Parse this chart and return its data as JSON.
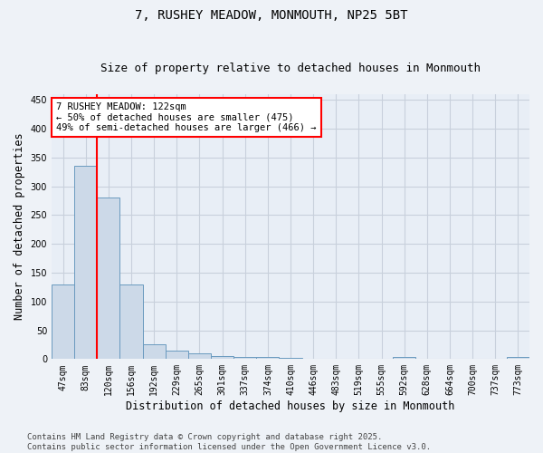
{
  "title": "7, RUSHEY MEADOW, MONMOUTH, NP25 5BT",
  "subtitle": "Size of property relative to detached houses in Monmouth",
  "xlabel": "Distribution of detached houses by size in Monmouth",
  "ylabel": "Number of detached properties",
  "categories": [
    "47sqm",
    "83sqm",
    "120sqm",
    "156sqm",
    "192sqm",
    "229sqm",
    "265sqm",
    "301sqm",
    "337sqm",
    "374sqm",
    "410sqm",
    "446sqm",
    "483sqm",
    "519sqm",
    "555sqm",
    "592sqm",
    "628sqm",
    "664sqm",
    "700sqm",
    "737sqm",
    "773sqm"
  ],
  "values": [
    130,
    335,
    280,
    130,
    25,
    15,
    10,
    5,
    4,
    3,
    2,
    1,
    1,
    1,
    1,
    3,
    1,
    1,
    1,
    1,
    3
  ],
  "bar_color": "#ccd9e8",
  "bar_edge_color": "#6a9abf",
  "vline_x": 1.5,
  "vline_color": "red",
  "annotation_text": "7 RUSHEY MEADOW: 122sqm\n← 50% of detached houses are smaller (475)\n49% of semi-detached houses are larger (466) →",
  "annotation_box_facecolor": "white",
  "annotation_box_edgecolor": "red",
  "ylim": [
    0,
    460
  ],
  "yticks": [
    0,
    50,
    100,
    150,
    200,
    250,
    300,
    350,
    400,
    450
  ],
  "footer_line1": "Contains HM Land Registry data © Crown copyright and database right 2025.",
  "footer_line2": "Contains public sector information licensed under the Open Government Licence v3.0.",
  "fig_facecolor": "#eef2f7",
  "plot_facecolor": "#e8eef6",
  "grid_color": "#c8d0dc",
  "title_fontsize": 10,
  "subtitle_fontsize": 9,
  "axis_label_fontsize": 8.5,
  "tick_fontsize": 7,
  "annotation_fontsize": 7.5,
  "footer_fontsize": 6.5
}
